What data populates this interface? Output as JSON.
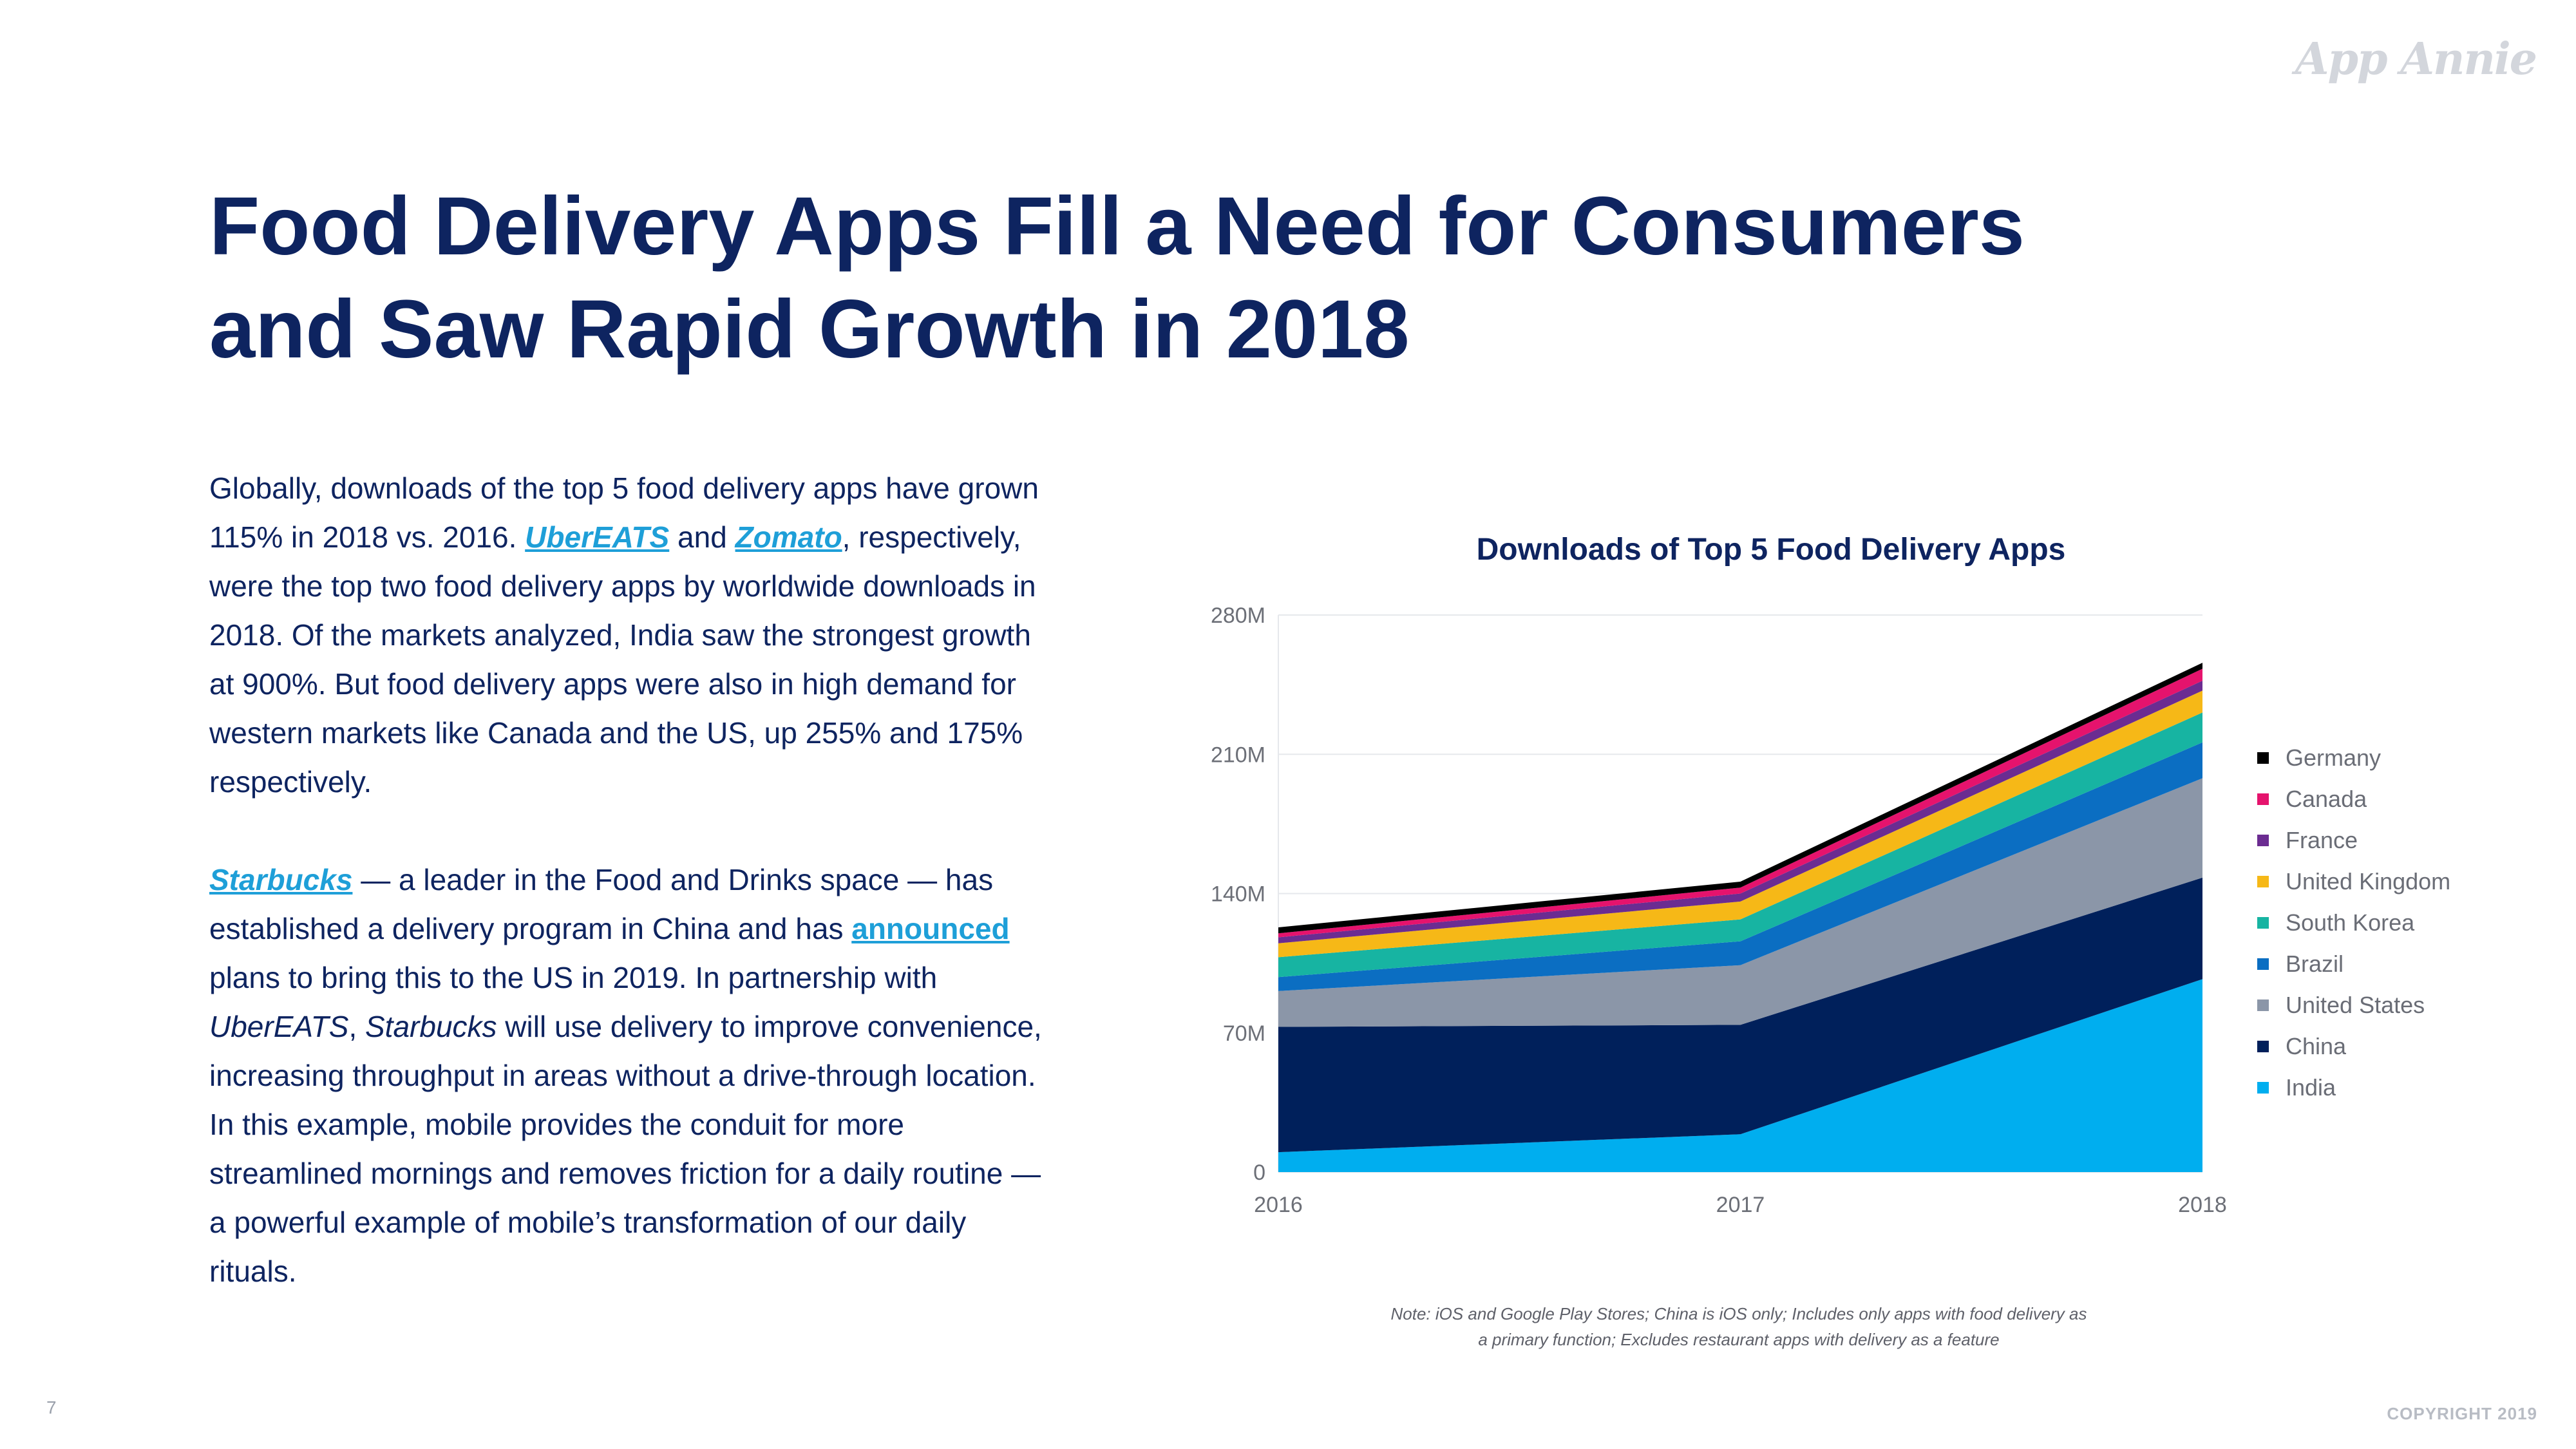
{
  "brand": {
    "logo_text": "App Annie"
  },
  "title": "Food Delivery Apps Fill a Need for Consumers and Saw Rapid Growth in 2018",
  "body": {
    "p1_a": "Globally, downloads of the top 5 food delivery apps have grown 115% in 2018 vs. 2016. ",
    "p1_link1": "UberEATS",
    "p1_b": " and ",
    "p1_link2": "Zomato",
    "p1_c": ", respectively, were the top two food delivery apps by worldwide downloads in 2018. Of the markets analyzed, India saw the strongest growth at 900%. But food delivery apps were also in high demand for western markets like Canada and the US, up 255% and 175% respectively.",
    "p2_link1": "Starbucks",
    "p2_a": " — a leader in the Food and Drinks space — has established a delivery program in China and has ",
    "p2_link2": "announced",
    "p2_b": " plans to bring this to the US in 2019. In partnership with ",
    "p2_em1": "UberEATS",
    "p2_c": ", ",
    "p2_em2": "Starbucks",
    "p2_d": " will use delivery to improve convenience, increasing throughput in areas without a drive-through location. In this example, mobile provides the conduit for more streamlined mornings and removes friction for a daily routine — a powerful example of mobile’s transformation of our daily rituals."
  },
  "chart_data": {
    "type": "area",
    "stacked": true,
    "title": "Downloads of Top 5 Food Delivery Apps",
    "x": [
      "2016",
      "2017",
      "2018"
    ],
    "y_ticks": [
      "0",
      "70M",
      "140M",
      "210M",
      "280M"
    ],
    "ylim": [
      0,
      280
    ],
    "grid": true,
    "legend_position": "right",
    "series": [
      {
        "name": "India",
        "color": "#00aeef",
        "values": [
          10,
          19,
          97
        ]
      },
      {
        "name": "China",
        "color": "#00205b",
        "values": [
          63,
          55,
          51
        ]
      },
      {
        "name": "United States",
        "color": "#8b96a8",
        "values": [
          18,
          30,
          50
        ]
      },
      {
        "name": "Brazil",
        "color": "#0b6ec2",
        "values": [
          7,
          12,
          18
        ]
      },
      {
        "name": "South Korea",
        "color": "#17b4a2",
        "values": [
          10,
          11,
          15
        ]
      },
      {
        "name": "United Kingdom",
        "color": "#f6b817",
        "values": [
          7,
          9,
          11
        ]
      },
      {
        "name": "France",
        "color": "#6b2c91",
        "values": [
          3,
          4,
          5
        ]
      },
      {
        "name": "Canada",
        "color": "#e5136d",
        "values": [
          2,
          3,
          6
        ]
      },
      {
        "name": "Germany",
        "color": "#000000",
        "values": [
          3,
          3,
          3
        ]
      }
    ]
  },
  "note": "Note: iOS and Google Play Stores; China is iOS only; Includes only apps with food delivery as a primary function; Excludes restaurant apps with delivery as a feature",
  "footer": {
    "page_number": "7",
    "copyright": "COPYRIGHT 2019"
  }
}
